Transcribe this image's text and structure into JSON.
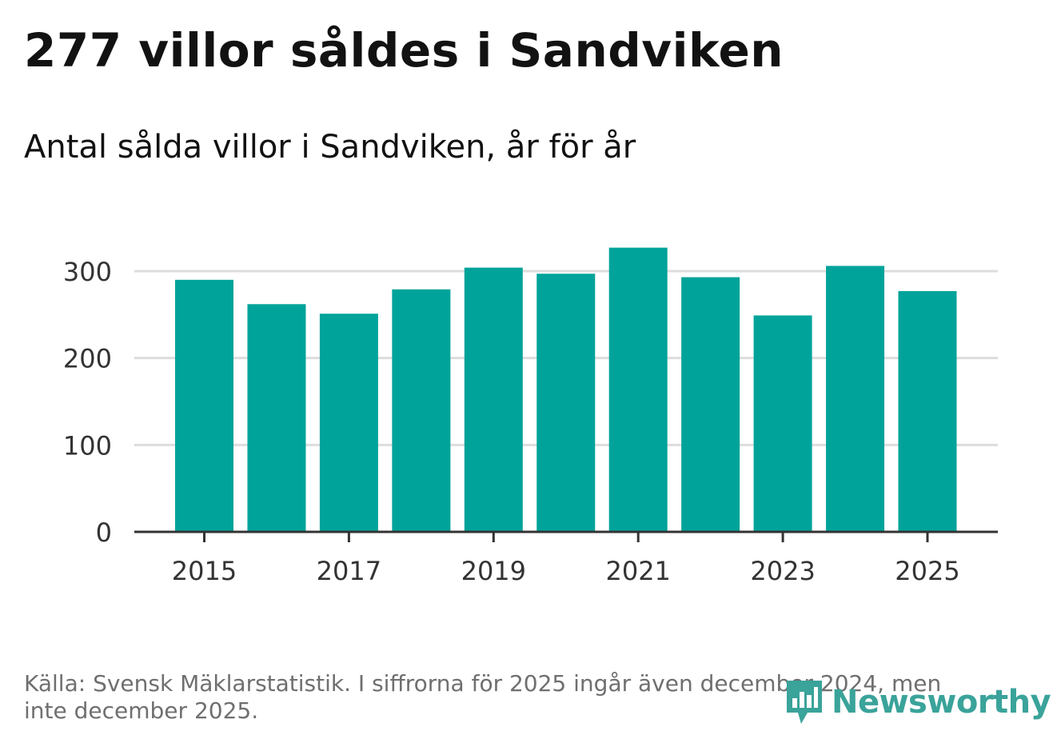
{
  "title": "277 villor såldes i Sandviken",
  "subtitle": "Antal sålda villor i Sandviken, år för år",
  "source": "Källa: Svensk Mäklarstatistik. I siffrorna för 2025 ingår även december 2024, men inte december 2025.",
  "logo": {
    "text": "Newsworthy",
    "icon": "newsworthy-bar-chart-icon"
  },
  "colors": {
    "bar": "#00a39a",
    "grid": "#dddddd",
    "axis": "#333333",
    "logo": "#3aa39a"
  },
  "chart_data": {
    "type": "bar",
    "title": "Antal sålda villor i Sandviken, år för år",
    "xlabel": "",
    "ylabel": "",
    "categories": [
      "2015",
      "2016",
      "2017",
      "2018",
      "2019",
      "2020",
      "2021",
      "2022",
      "2023",
      "2024",
      "2025"
    ],
    "values": [
      290,
      262,
      251,
      279,
      304,
      297,
      327,
      293,
      249,
      306,
      277
    ],
    "ylim": [
      0,
      340
    ],
    "yticks": [
      0,
      100,
      200,
      300
    ],
    "xtick_labels": [
      "2015",
      "2017",
      "2019",
      "2021",
      "2023",
      "2025"
    ],
    "grid": true,
    "legend": "none"
  }
}
